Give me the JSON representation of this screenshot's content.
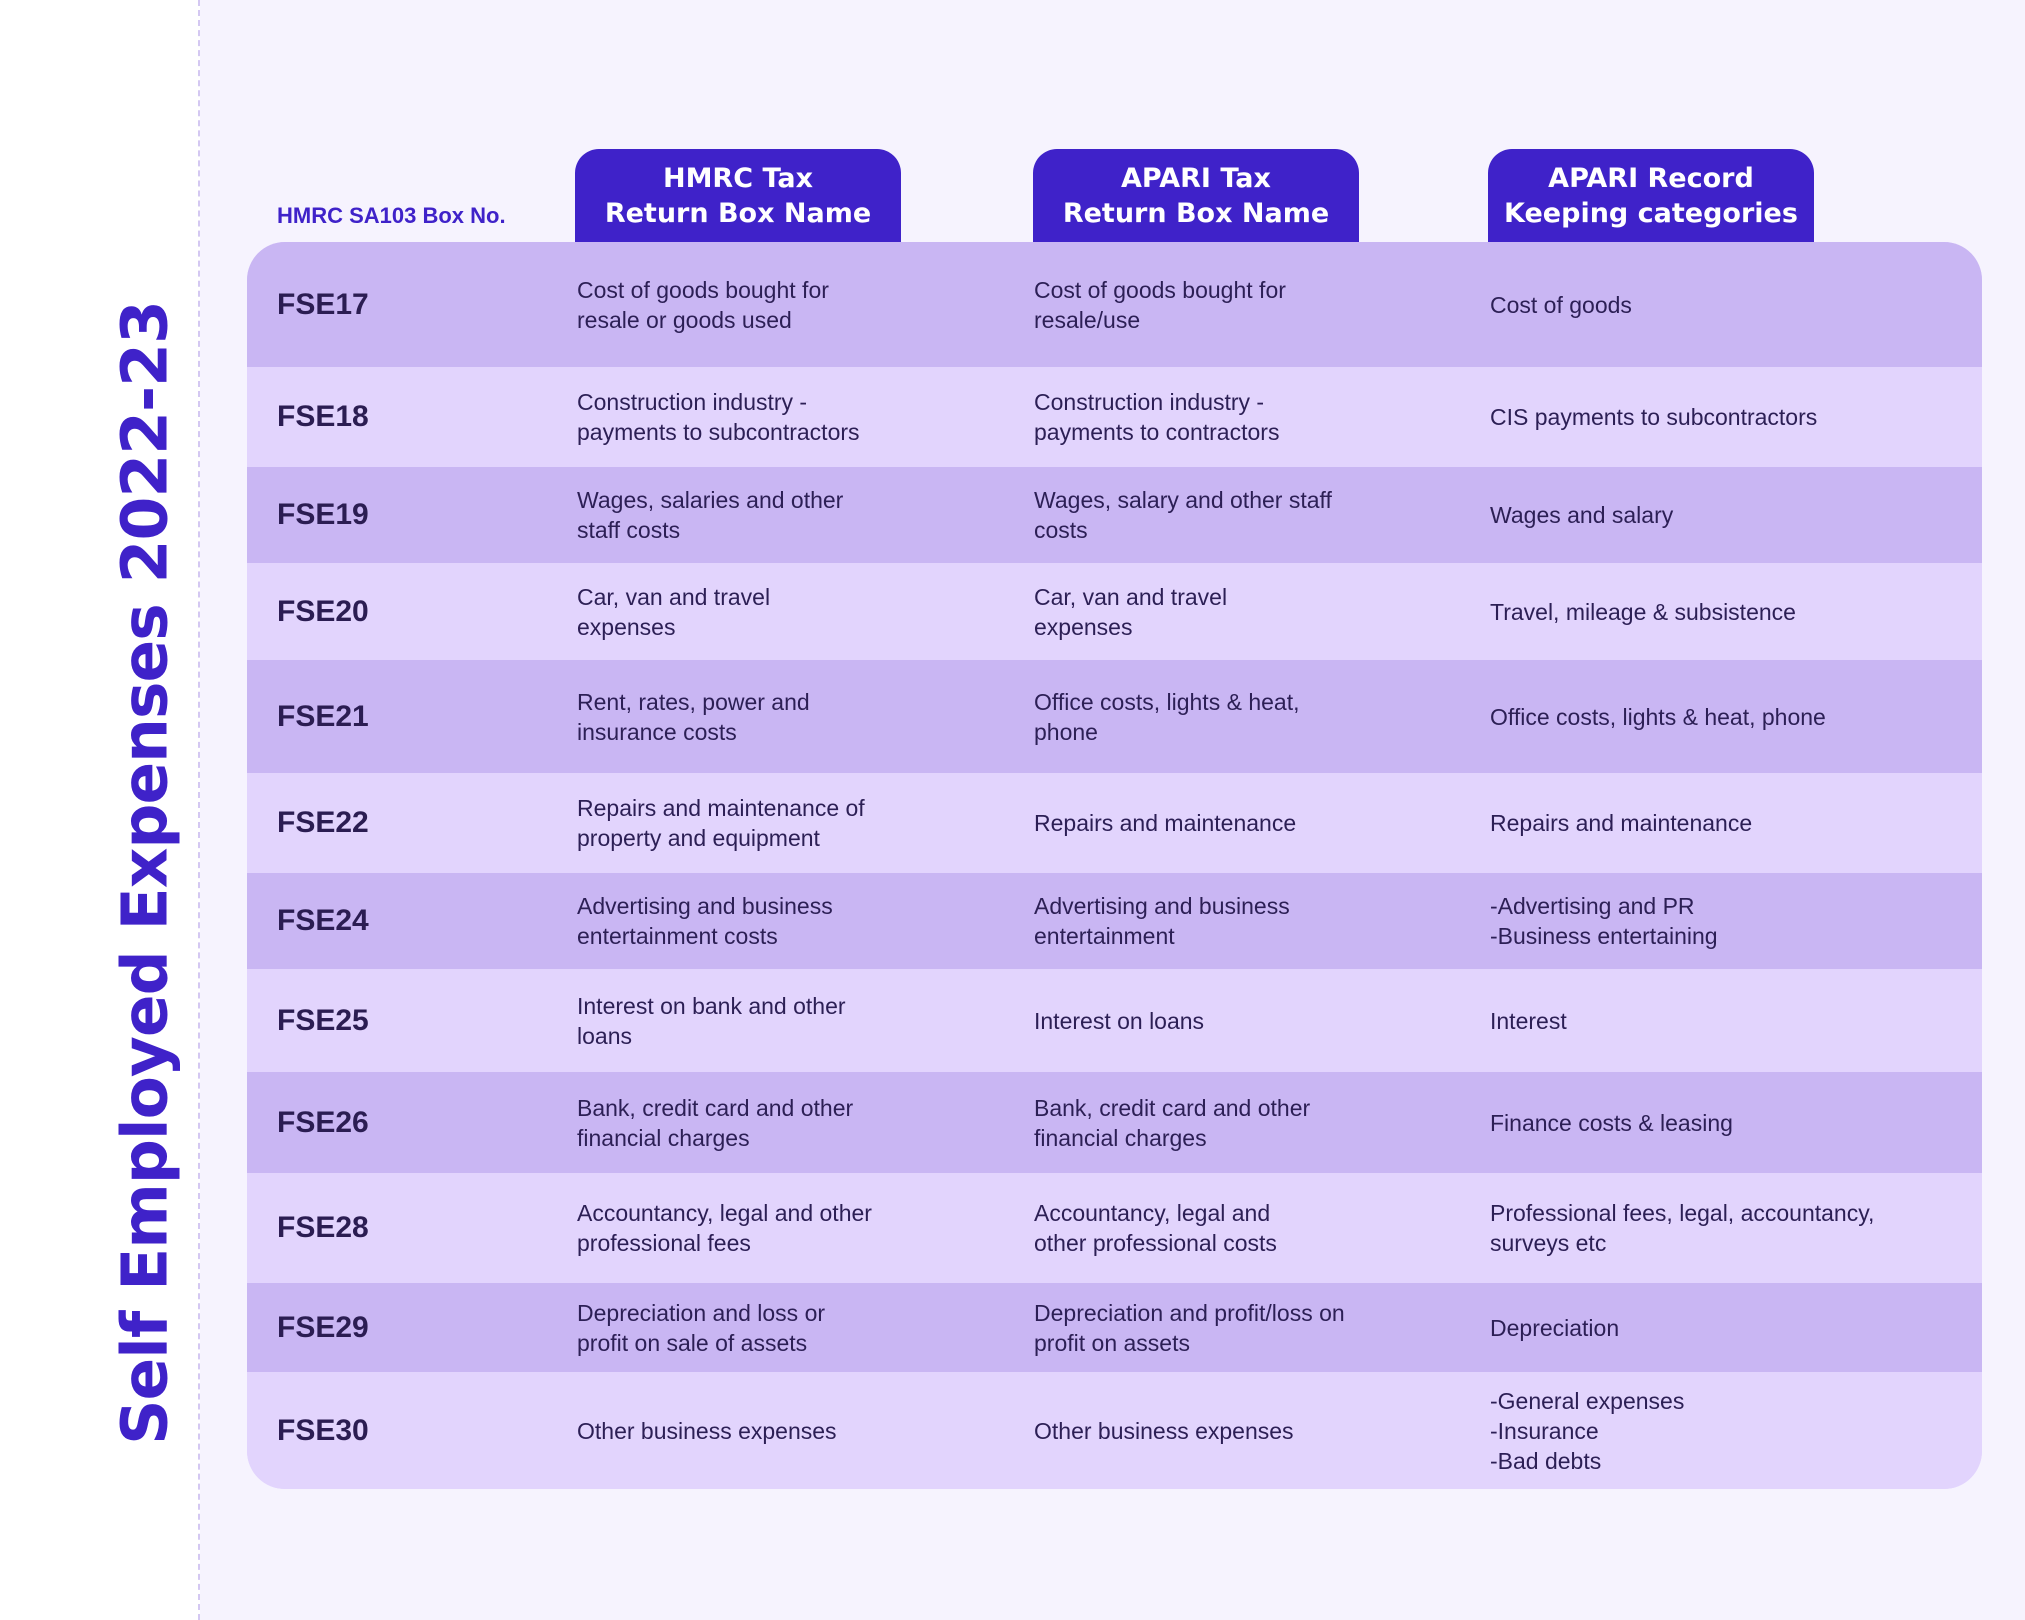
{
  "title": "Self Employed Expenses 2022-23",
  "header": {
    "box_caption": "HMRC SA103 Box No.",
    "col1": [
      "HMRC Tax",
      "Return Box Name"
    ],
    "col2": [
      "APARI Tax",
      "Return Box Name"
    ],
    "col3": [
      "APARI Record",
      "Keeping categories"
    ]
  },
  "rows": [
    {
      "box": "FSE17",
      "hmrc": [
        "Cost of goods bought for",
        "resale or goods used"
      ],
      "apari": [
        "Cost of goods bought for",
        "resale/use"
      ],
      "record": [
        "Cost of goods"
      ]
    },
    {
      "box": "FSE18",
      "hmrc": [
        "Construction industry -",
        "payments to subcontractors"
      ],
      "apari": [
        "Construction industry -",
        "payments to contractors"
      ],
      "record": [
        "CIS payments to subcontractors"
      ]
    },
    {
      "box": "FSE19",
      "hmrc": [
        "Wages, salaries and other",
        "staff costs"
      ],
      "apari": [
        "Wages, salary and other staff",
        "costs"
      ],
      "record": [
        "Wages and salary"
      ]
    },
    {
      "box": "FSE20",
      "hmrc": [
        "Car, van and travel",
        "expenses"
      ],
      "apari": [
        "Car, van and travel",
        "expenses"
      ],
      "record": [
        "Travel, mileage & subsistence"
      ]
    },
    {
      "box": "FSE21",
      "hmrc": [
        "Rent, rates, power and",
        "insurance costs"
      ],
      "apari": [
        "Office costs, lights & heat,",
        "phone"
      ],
      "record": [
        "Office costs, lights & heat, phone"
      ]
    },
    {
      "box": "FSE22",
      "hmrc": [
        "Repairs and maintenance of",
        "property and equipment"
      ],
      "apari": [
        "Repairs and maintenance"
      ],
      "record": [
        "Repairs and maintenance"
      ]
    },
    {
      "box": "FSE24",
      "hmrc": [
        "Advertising and business",
        "entertainment costs"
      ],
      "apari": [
        "Advertising and business",
        "entertainment"
      ],
      "record": [
        "-Advertising and PR",
        "-Business entertaining"
      ]
    },
    {
      "box": "FSE25",
      "hmrc": [
        "Interest on bank and other",
        "loans"
      ],
      "apari": [
        "Interest on loans"
      ],
      "record": [
        "Interest"
      ]
    },
    {
      "box": "FSE26",
      "hmrc": [
        "Bank, credit card and other",
        "financial charges"
      ],
      "apari": [
        "Bank, credit card and other",
        "financial charges"
      ],
      "record": [
        "Finance costs & leasing"
      ]
    },
    {
      "box": "FSE28",
      "hmrc": [
        "Accountancy, legal and other",
        "professional fees"
      ],
      "apari": [
        "Accountancy, legal and",
        "other professional costs"
      ],
      "record": [
        "Professional fees, legal, accountancy,",
        "surveys etc"
      ]
    },
    {
      "box": "FSE29",
      "hmrc": [
        "Depreciation and loss or",
        "profit on sale of assets"
      ],
      "apari": [
        "Depreciation and profit/loss on",
        "profit on assets"
      ],
      "record": [
        "Depreciation"
      ]
    },
    {
      "box": "FSE30",
      "hmrc": [
        "Other business expenses"
      ],
      "apari": [
        "Other business expenses"
      ],
      "record": [
        "-General expenses",
        "-Insurance",
        "-Bad debts"
      ]
    }
  ]
}
